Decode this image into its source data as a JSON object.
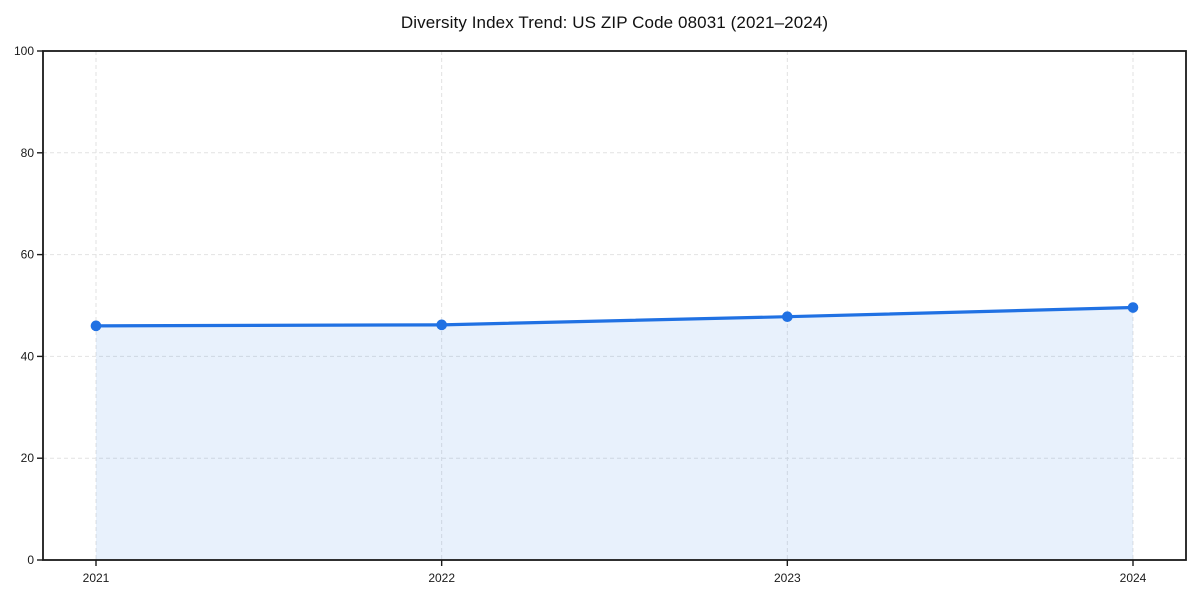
{
  "chart_data": {
    "type": "area",
    "title": "Diversity Index Trend: US ZIP Code 08031 (2021–2024)",
    "categories": [
      "2021",
      "2022",
      "2023",
      "2024"
    ],
    "series": [
      {
        "name": "Diversity Index",
        "values": [
          46.0,
          46.2,
          47.8,
          49.6
        ]
      }
    ],
    "xlabel": "",
    "ylabel": "",
    "ylim": [
      0,
      100
    ],
    "yticks": [
      0,
      20,
      40,
      60,
      80,
      100
    ],
    "grid": true,
    "grid_style": "dashed",
    "legend_position": "none",
    "line_color": "#2071e3",
    "fill_color": "rgba(32, 113, 227, 0.10)",
    "marker": "circle",
    "axis_color": "#1a1a1a",
    "grid_color": "#e2e2e2",
    "background_color": "#ffffff"
  }
}
